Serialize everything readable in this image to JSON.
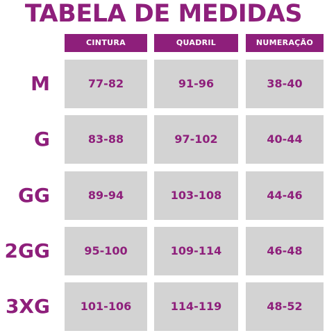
{
  "title": "TABELA DE MEDIDAS",
  "columns": [
    "CINTURA",
    "QUADRIL",
    "NUMERAÇÃO"
  ],
  "rows": [
    {
      "size": "M",
      "values": [
        "77-82",
        "91-96",
        "38-40"
      ]
    },
    {
      "size": "G",
      "values": [
        "83-88",
        "97-102",
        "40-44"
      ]
    },
    {
      "size": "GG",
      "values": [
        "89-94",
        "103-108",
        "44-46"
      ]
    },
    {
      "size": "2GG",
      "values": [
        "95-100",
        "109-114",
        "46-48"
      ]
    },
    {
      "size": "3XG",
      "values": [
        "101-106",
        "114-119",
        "48-52"
      ]
    }
  ],
  "colors": {
    "accent": "#8e1f7b",
    "cell_bg": "#d3d3d3"
  }
}
